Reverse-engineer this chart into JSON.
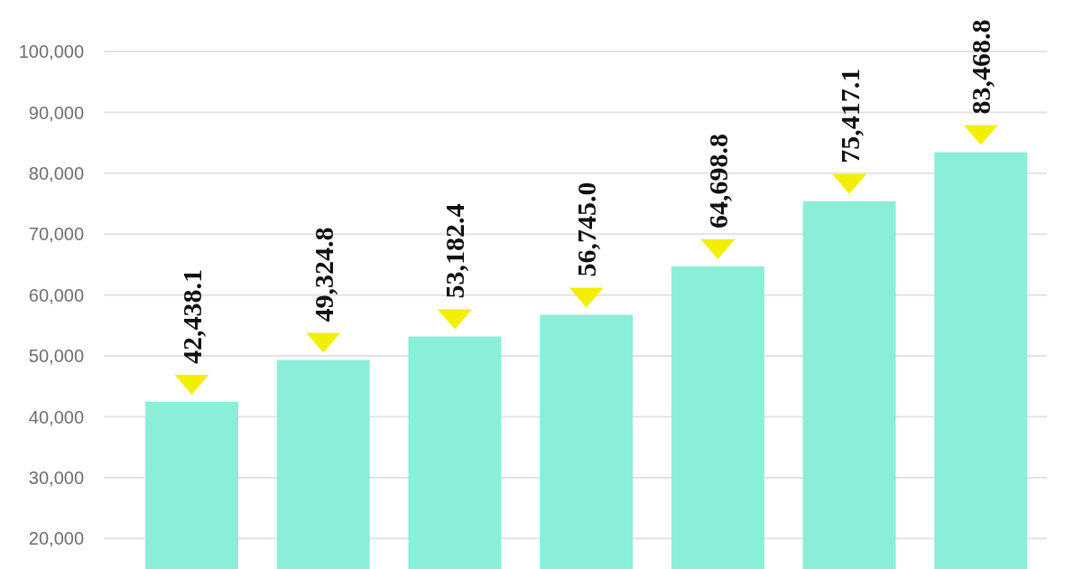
{
  "chart_data": {
    "type": "bar",
    "categories": [
      null,
      null,
      null,
      null,
      null,
      null,
      null
    ],
    "values": [
      42438.1,
      49324.8,
      53182.4,
      56745.0,
      64698.8,
      75417.1,
      83468.8
    ],
    "value_labels": [
      "42,438.1",
      "49,324.8",
      "53,182.4",
      "56,745.0",
      "64,698.8",
      "75,417.1",
      "83,468.8"
    ],
    "color": "#8beed9",
    "ylim": [
      15000,
      100000
    ],
    "yticks": [
      {
        "value": 20000,
        "label": "20,000"
      },
      {
        "value": 30000,
        "label": "30,000"
      },
      {
        "value": 40000,
        "label": "40,000"
      },
      {
        "value": 50000,
        "label": "50,000"
      },
      {
        "value": 60000,
        "label": "60,000"
      },
      {
        "value": 70000,
        "label": "70,000"
      },
      {
        "value": 80000,
        "label": "80,000"
      },
      {
        "value": 90000,
        "label": "90,000"
      },
      {
        "value": 100000,
        "label": "100,000"
      }
    ],
    "grid": "y",
    "tick_labels": "y"
  }
}
